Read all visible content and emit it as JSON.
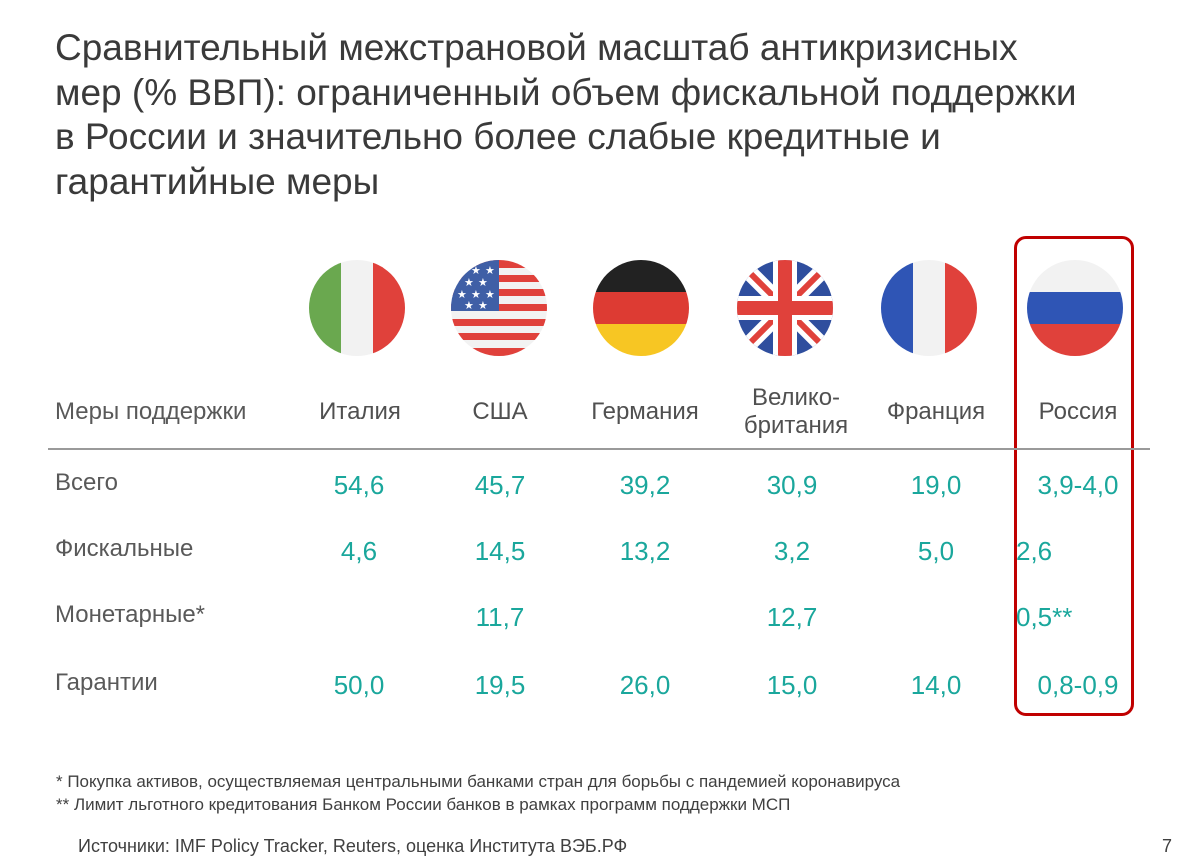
{
  "title": "Сравнительный межстрановой масштаб антикризисных\nмер (% ВВП): ограниченный объем фискальной поддержки\nв России и значительно более слабые кредитные и\nгарантийные меры",
  "flags": [
    {
      "icon": "italy-flag-icon"
    },
    {
      "icon": "usa-flag-icon"
    },
    {
      "icon": "germany-flag-icon"
    },
    {
      "icon": "uk-flag-icon"
    },
    {
      "icon": "france-flag-icon"
    },
    {
      "icon": "russia-flag-icon"
    }
  ],
  "table": {
    "header_label": "Меры поддержки",
    "columns": [
      "Италия",
      "США",
      "Германия",
      "Велико-\nбритания",
      "Франция",
      "Россия"
    ],
    "rows": [
      {
        "label": "Всего",
        "values": [
          "54,6",
          "45,7",
          "39,2",
          "30,9",
          "19,0",
          "3,9-4,0"
        ]
      },
      {
        "label": "Фискальные",
        "values": [
          "4,6",
          "14,5",
          "13,2",
          "3,2",
          "5,0",
          "2,6"
        ]
      },
      {
        "label": "Монетарные*",
        "values": [
          "",
          "11,7",
          "",
          "12,7",
          "",
          "0,5**"
        ]
      },
      {
        "label": "Гарантии",
        "values": [
          "50,0",
          "19,5",
          "26,0",
          "15,0",
          "14,0",
          "0,8-0,9"
        ]
      }
    ]
  },
  "colors": {
    "values": "#1aa79c",
    "highlight": "#c00000"
  },
  "notes": [
    "*  Покупка активов, осуществляемая центральными банками стран для борьбы с пандемией коронавируса",
    "** Лимит льготного кредитования Банком России банков в рамках программ поддержки МСП"
  ],
  "source": "Источники: IMF Policy Tracker, Reuters, оценка Института ВЭБ.РФ",
  "page_number": "7"
}
